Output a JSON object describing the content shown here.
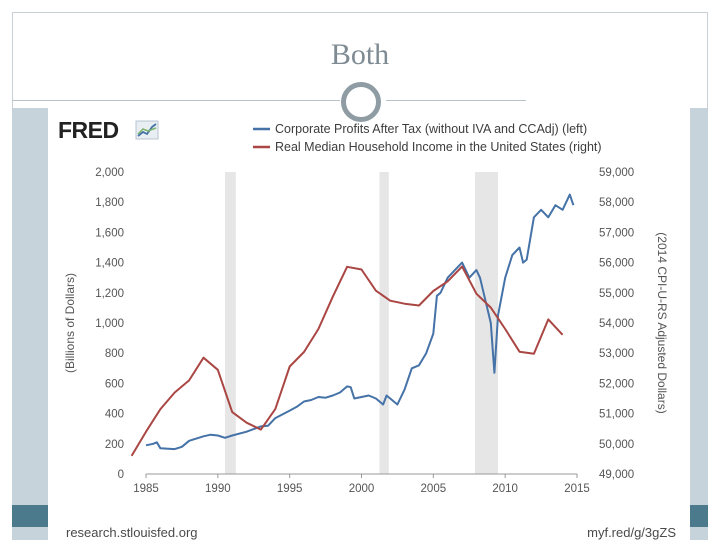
{
  "slide": {
    "title": "Both"
  },
  "source": {
    "logo_text": "FRED",
    "footer_left": "research.stlouisfed.org",
    "footer_right": "myf.red/g/3gZS"
  },
  "colors": {
    "left_series": "#4572a7",
    "right_series": "#aa4643",
    "recession": "#e6e6e6",
    "teal": "#4b7a8c"
  },
  "chart_data": {
    "type": "line",
    "title": "",
    "xlabel": "",
    "ylabel_left": "(Billions of Dollars)",
    "ylabel_right": "(2014 CPI-U-RS Adjusted Dollars)",
    "xlim": [
      1985,
      2015
    ],
    "ylim_left": [
      0,
      2000
    ],
    "ylim_right": [
      49000,
      59000
    ],
    "x_ticks": [
      "1985",
      "1990",
      "1995",
      "2000",
      "2005",
      "2010",
      "2015"
    ],
    "y_ticks_left": [
      "0",
      "200",
      "400",
      "600",
      "800",
      "1,000",
      "1,200",
      "1,400",
      "1,600",
      "1,800",
      "2,000"
    ],
    "y_ticks_right": [
      "49,000",
      "50,000",
      "51,000",
      "52,000",
      "53,000",
      "54,000",
      "55,000",
      "56,000",
      "57,000",
      "58,000",
      "59,000"
    ],
    "grid": false,
    "legend_position": "top",
    "recessions": [
      [
        1990.5,
        1991.25
      ],
      [
        2001.25,
        2001.9
      ],
      [
        2007.9,
        2009.5
      ]
    ],
    "series": [
      {
        "name": "Corporate Profits After Tax (without IVA and CCAdj) (left)",
        "axis": "left",
        "points": [
          [
            1985,
            190
          ],
          [
            1985.5,
            200
          ],
          [
            1985.75,
            210
          ],
          [
            1986,
            170
          ],
          [
            1987,
            165
          ],
          [
            1987.5,
            180
          ],
          [
            1988,
            220
          ],
          [
            1989,
            250
          ],
          [
            1989.5,
            260
          ],
          [
            1990,
            255
          ],
          [
            1990.5,
            240
          ],
          [
            1991,
            255
          ],
          [
            1992,
            280
          ],
          [
            1993,
            315
          ],
          [
            1993.5,
            320
          ],
          [
            1994,
            370
          ],
          [
            1995,
            420
          ],
          [
            1995.5,
            445
          ],
          [
            1996,
            480
          ],
          [
            1996.5,
            490
          ],
          [
            1997,
            510
          ],
          [
            1997.5,
            505
          ],
          [
            1998,
            520
          ],
          [
            1998.5,
            540
          ],
          [
            1999,
            580
          ],
          [
            1999.25,
            575
          ],
          [
            1999.5,
            500
          ],
          [
            2000,
            510
          ],
          [
            2000.5,
            520
          ],
          [
            2001,
            500
          ],
          [
            2001.5,
            460
          ],
          [
            2001.75,
            520
          ],
          [
            2002,
            500
          ],
          [
            2002.5,
            460
          ],
          [
            2003,
            560
          ],
          [
            2003.5,
            700
          ],
          [
            2004,
            720
          ],
          [
            2004.5,
            800
          ],
          [
            2005,
            930
          ],
          [
            2005.25,
            1180
          ],
          [
            2005.5,
            1200
          ],
          [
            2006,
            1300
          ],
          [
            2006.5,
            1350
          ],
          [
            2007,
            1400
          ],
          [
            2007.25,
            1350
          ],
          [
            2007.5,
            1300
          ],
          [
            2008,
            1350
          ],
          [
            2008.25,
            1300
          ],
          [
            2008.5,
            1200
          ],
          [
            2009,
            1000
          ],
          [
            2009.25,
            670
          ],
          [
            2009.5,
            1050
          ],
          [
            2010,
            1300
          ],
          [
            2010.5,
            1450
          ],
          [
            2011,
            1500
          ],
          [
            2011.25,
            1400
          ],
          [
            2011.5,
            1420
          ],
          [
            2012,
            1700
          ],
          [
            2012.5,
            1750
          ],
          [
            2013,
            1700
          ],
          [
            2013.5,
            1780
          ],
          [
            2014,
            1750
          ],
          [
            2014.5,
            1850
          ],
          [
            2014.75,
            1780
          ]
        ]
      },
      {
        "name": "Real Median Household Income in the United States (right)",
        "axis": "right",
        "points": [
          [
            1984,
            49600
          ],
          [
            1985,
            50400
          ],
          [
            1986,
            51150
          ],
          [
            1987,
            51700
          ],
          [
            1988,
            52100
          ],
          [
            1989,
            52850
          ],
          [
            1990,
            52450
          ],
          [
            1991,
            51050
          ],
          [
            1992,
            50700
          ],
          [
            1993,
            50470
          ],
          [
            1994,
            51150
          ],
          [
            1995,
            52560
          ],
          [
            1996,
            53040
          ],
          [
            1997,
            53800
          ],
          [
            1998,
            54870
          ],
          [
            1999,
            55860
          ],
          [
            2000,
            55770
          ],
          [
            2001,
            55070
          ],
          [
            2002,
            54740
          ],
          [
            2003,
            54640
          ],
          [
            2004,
            54580
          ],
          [
            2005,
            55060
          ],
          [
            2006,
            55380
          ],
          [
            2007,
            55870
          ],
          [
            2008,
            54970
          ],
          [
            2009,
            54510
          ],
          [
            2010,
            53800
          ],
          [
            2011,
            53050
          ],
          [
            2012,
            52980
          ],
          [
            2013,
            54120
          ],
          [
            2014,
            53610
          ]
        ]
      }
    ]
  }
}
